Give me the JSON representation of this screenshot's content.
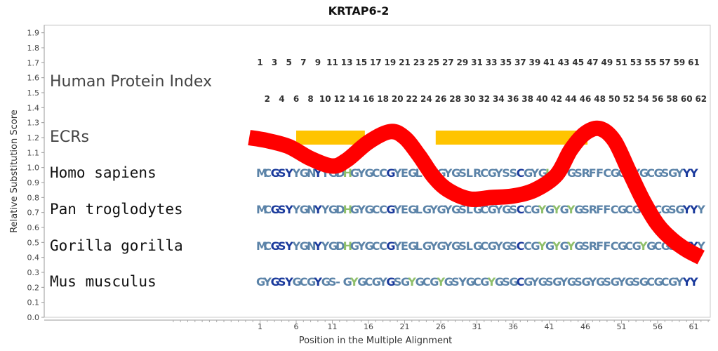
{
  "chart_data": {
    "type": "line",
    "title": "KRTAP6-2",
    "xlabel": "Position in the Multiple Alignment",
    "ylabel": "Relative Substitution Score",
    "ylim": [
      0,
      1.95
    ],
    "xlim": [
      -11,
      63
    ],
    "y_ticks": [
      "0.0",
      "0.1",
      "0.2",
      "0.3",
      "0.4",
      "0.5",
      "0.6",
      "0.7",
      "0.8",
      "0.9",
      "1.0",
      "1.1",
      "1.2",
      "1.3",
      "1.4",
      "1.5",
      "1.6",
      "1.7",
      "1.8",
      "1.9"
    ],
    "x_ticks": [
      1,
      6,
      11,
      16,
      21,
      26,
      31,
      36,
      41,
      46,
      51,
      56,
      61
    ],
    "row_labels": {
      "index": "Human Protein Index",
      "ecrs": "ECRs"
    },
    "index_odd": [
      1,
      3,
      5,
      7,
      9,
      11,
      13,
      15,
      17,
      19,
      21,
      23,
      25,
      27,
      29,
      31,
      33,
      35,
      37,
      39,
      41,
      43,
      45,
      47,
      49,
      51,
      53,
      55,
      57,
      59,
      61
    ],
    "index_even": [
      2,
      4,
      6,
      8,
      10,
      12,
      14,
      16,
      18,
      20,
      22,
      24,
      26,
      28,
      30,
      32,
      34,
      36,
      38,
      40,
      42,
      44,
      46,
      48,
      50,
      52,
      54,
      56,
      58,
      60,
      62
    ],
    "ecr_segments": [
      [
        6,
        15.5
      ],
      [
        25.3,
        46.3
      ]
    ],
    "ecr_y": 1.2,
    "sequences": [
      {
        "name": "Homo sapiens",
        "seq": "MCGSYYGNYYGDHGYGCCGYEGLGYGYGSLRCGYSSCGYGHGYGSRFFCGCGYGCGSGYYY"
      },
      {
        "name": "Pan troglodytes",
        "seq": "MCGSYYGNYYGDHGYGCCGYEGLGYGYGSLGCGYGSCCGYGYGYGSRFFCGCGYGCGSGYYY"
      },
      {
        "name": "Gorilla gorilla",
        "seq": "MCGSYYGNYYGDHGYGCCGYEGLGYGYGSLGCGYGSCCGYGYGYGSRFFCGCGYGCGSGYYY"
      },
      {
        "name": "Mus musculus",
        "seq": "GYGSYGCGYGS-GYGCGYGSGYGCGYGSYGCGYGSGCGYGSGYGSGYGSGYGSGCGCGYYY"
      }
    ],
    "series": [
      {
        "x": [
          -0.5,
          2,
          5,
          8,
          11,
          13,
          16,
          19,
          21,
          23,
          25,
          27,
          30,
          33,
          36,
          39,
          42,
          44,
          46,
          48,
          50,
          52,
          54,
          56,
          58,
          60,
          62
        ],
        "values": [
          1.2,
          1.18,
          1.14,
          1.06,
          1.01,
          1.05,
          1.17,
          1.24,
          1.2,
          1.08,
          0.94,
          0.85,
          0.79,
          0.8,
          0.81,
          0.85,
          0.95,
          1.12,
          1.23,
          1.26,
          1.18,
          0.98,
          0.78,
          0.62,
          0.52,
          0.45,
          0.4
        ]
      }
    ],
    "colors": {
      "curve": "#ff0000",
      "ecr": "#ffc400",
      "conserved_residue": "#1a3a9c",
      "variable_residue": "#5b83a8",
      "divergent_residue": "#8fbf6a"
    }
  }
}
